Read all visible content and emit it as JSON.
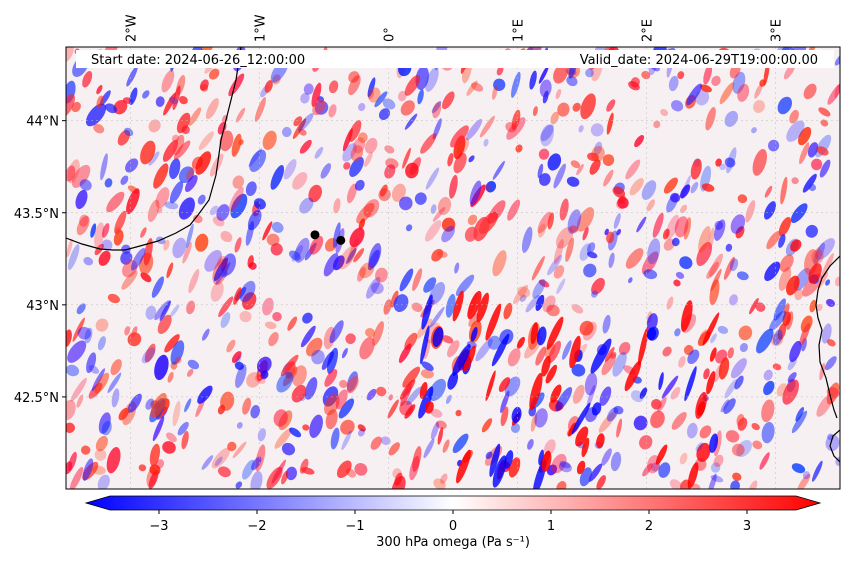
{
  "header": {
    "start_date": "Start date: 2024-06-26_12:00:00",
    "valid_date": "Valid_date: 2024-06-29T19:00:00.00"
  },
  "map": {
    "lon_range": [
      -2.5,
      3.5
    ],
    "lat_range": [
      42.0,
      44.4
    ],
    "lon_ticks": [
      {
        "value": -2,
        "label": "2°W"
      },
      {
        "value": -1,
        "label": "1°W"
      },
      {
        "value": 0,
        "label": "0°"
      },
      {
        "value": 1,
        "label": "1°E"
      },
      {
        "value": 2,
        "label": "2°E"
      },
      {
        "value": 3,
        "label": "3°E"
      }
    ],
    "lat_ticks": [
      {
        "value": 44.0,
        "label": "44°N"
      },
      {
        "value": 43.5,
        "label": "43.5°N"
      },
      {
        "value": 43.0,
        "label": "43°N"
      },
      {
        "value": 42.5,
        "label": "42.5°N"
      }
    ],
    "markers": [
      {
        "name": "point-a",
        "lon": -0.57,
        "lat": 43.38
      },
      {
        "name": "point-b",
        "lon": -0.37,
        "lat": 43.35
      }
    ]
  },
  "colorbar": {
    "label": "300 hPa omega (Pa s⁻¹)",
    "vmin": -3.5,
    "vmax": 3.5,
    "ticks": [
      {
        "value": -3,
        "label": "−3"
      },
      {
        "value": -2,
        "label": "−2"
      },
      {
        "value": -1,
        "label": "−1"
      },
      {
        "value": 0,
        "label": "0"
      },
      {
        "value": 1,
        "label": "1"
      },
      {
        "value": 2,
        "label": "2"
      },
      {
        "value": 3,
        "label": "3"
      }
    ],
    "colors": {
      "low": "#0000ff",
      "mid": "#ffffff",
      "high": "#ff0000"
    }
  }
}
